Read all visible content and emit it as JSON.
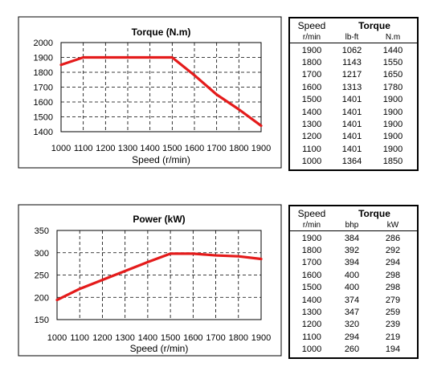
{
  "charts": [
    {
      "id": "torque",
      "chart_data": {
        "type": "line",
        "title": "Torque (N.m)",
        "xlabel": "Speed (r/min)",
        "ylabel": "",
        "x": [
          1000,
          1100,
          1200,
          1300,
          1400,
          1500,
          1600,
          1700,
          1800,
          1900
        ],
        "xticks": [
          "1000",
          "1100",
          "1200",
          "1300",
          "1400",
          "1500",
          "1600",
          "1700",
          "1800",
          "1900"
        ],
        "yticks": [
          "2000",
          "1900",
          "1800",
          "1700",
          "1600",
          "1500",
          "1400"
        ],
        "yticks_values": [
          2000,
          1900,
          1800,
          1700,
          1600,
          1500,
          1400
        ],
        "xlim": [
          1000,
          1900
        ],
        "ylim": [
          1400,
          2000
        ],
        "grid": true,
        "series": [
          {
            "values": [
              1850,
              1900,
              1900,
              1900,
              1900,
              1900,
              1780,
              1650,
              1550,
              1440
            ],
            "color": "#e41b1b"
          }
        ]
      }
    },
    {
      "id": "power",
      "chart_data": {
        "type": "line",
        "title": "Power (kW)",
        "xlabel": "Speed (r/min)",
        "ylabel": "",
        "x": [
          1000,
          1100,
          1200,
          1300,
          1400,
          1500,
          1600,
          1700,
          1800,
          1900
        ],
        "xticks": [
          "1000",
          "1100",
          "1200",
          "1300",
          "1400",
          "1500",
          "1600",
          "1700",
          "1800",
          "1900"
        ],
        "yticks": [
          "350",
          "300",
          "250",
          "200",
          "150"
        ],
        "yticks_values": [
          350,
          300,
          250,
          200,
          150
        ],
        "xlim": [
          1000,
          1900
        ],
        "ylim": [
          150,
          350
        ],
        "grid": true,
        "series": [
          {
            "values": [
              194,
              219,
              239,
              259,
              279,
              298,
              298,
              294,
              292,
              286
            ],
            "color": "#e41b1b"
          }
        ]
      }
    }
  ],
  "tables": [
    {
      "id": "torque-table",
      "header": {
        "speed": "Speed",
        "group": "Torque"
      },
      "units": [
        "r/min",
        "lb-ft",
        "N.m"
      ],
      "rows": [
        [
          "1900",
          "1062",
          "1440"
        ],
        [
          "1800",
          "1143",
          "1550"
        ],
        [
          "1700",
          "1217",
          "1650"
        ],
        [
          "1600",
          "1313",
          "1780"
        ],
        [
          "1500",
          "1401",
          "1900"
        ],
        [
          "1400",
          "1401",
          "1900"
        ],
        [
          "1300",
          "1401",
          "1900"
        ],
        [
          "1200",
          "1401",
          "1900"
        ],
        [
          "1100",
          "1401",
          "1900"
        ],
        [
          "1000",
          "1364",
          "1850"
        ]
      ]
    },
    {
      "id": "power-table",
      "header": {
        "speed": "Speed",
        "group": "Torque"
      },
      "units": [
        "r/min",
        "bhp",
        "kW"
      ],
      "rows": [
        [
          "1900",
          "384",
          "286"
        ],
        [
          "1800",
          "392",
          "292"
        ],
        [
          "1700",
          "394",
          "294"
        ],
        [
          "1600",
          "400",
          "298"
        ],
        [
          "1500",
          "400",
          "298"
        ],
        [
          "1400",
          "374",
          "279"
        ],
        [
          "1300",
          "347",
          "259"
        ],
        [
          "1200",
          "320",
          "239"
        ],
        [
          "1100",
          "294",
          "219"
        ],
        [
          "1000",
          "260",
          "194"
        ]
      ]
    }
  ]
}
